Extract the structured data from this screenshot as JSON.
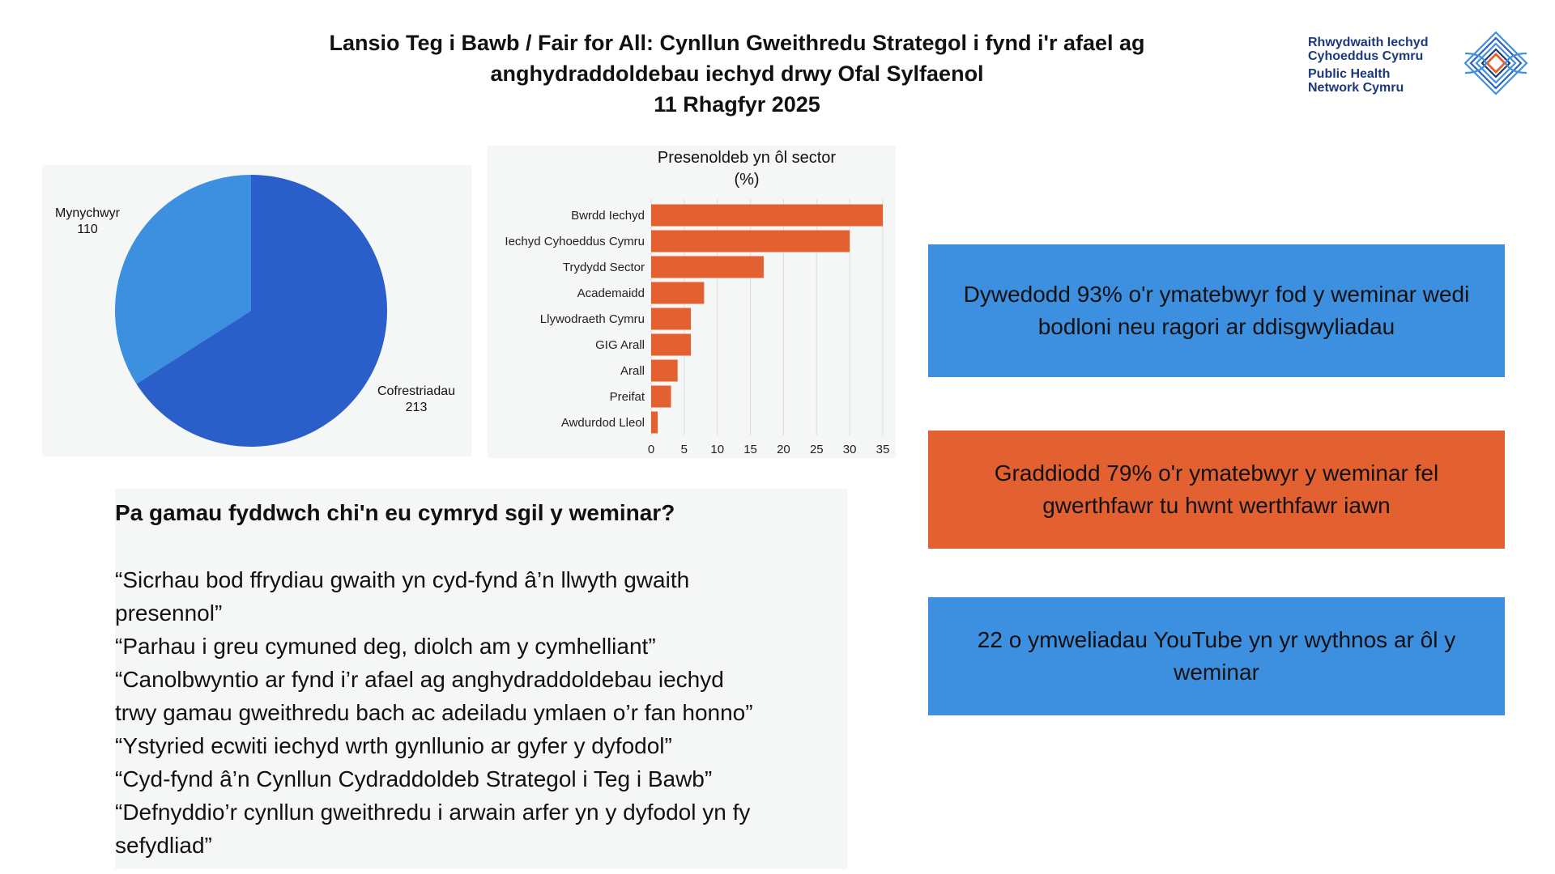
{
  "header": {
    "title_line1": "Lansio Teg i Bawb / Fair for All: Cynllun Gweithredu Strategol i fynd i'r afael ag",
    "title_line2": "anghydraddoldebau iechyd drwy Ofal Sylfaenol",
    "date": "11 Rhagfyr 2025"
  },
  "logo": {
    "line1": "Rhwydwaith Iechyd",
    "line2": "Cyhoeddus Cymru",
    "line3": "Public Health",
    "line4": "Network Cymru",
    "icon": "network-diamond-icon"
  },
  "chart_data": [
    {
      "type": "pie",
      "categories": [
        "Mynychwyr",
        "Cofrestriadau"
      ],
      "values": [
        110,
        213
      ],
      "labels": [
        {
          "name": "Mynychwyr",
          "value": "110"
        },
        {
          "name": "Cofrestriadau",
          "value": "213"
        }
      ],
      "colors": [
        "#3d8fe0",
        "#2a5fc9"
      ]
    },
    {
      "type": "bar",
      "orientation": "horizontal",
      "title": "Presenoldeb yn ôl sector",
      "subtitle": "(%)",
      "categories": [
        "Bwrdd Iechyd",
        "Iechyd Cyhoeddus Cymru",
        "Trydydd Sector",
        "Academaidd",
        "Llywodraeth Cymru",
        "GIG Arall",
        "Arall",
        "Preifat",
        "Awdurdod Lleol"
      ],
      "values": [
        35,
        30,
        17,
        8,
        6,
        6,
        4,
        3,
        1
      ],
      "xlim": [
        0,
        35
      ],
      "xticks": [
        "0",
        "5",
        "10",
        "15",
        "20",
        "25",
        "30",
        "35"
      ],
      "grid": "vertical",
      "color": "#e36130"
    }
  ],
  "feedback": {
    "heading": "Pa gamau fyddwch chi'n eu cymryd sgil y weminar?",
    "quotes": [
      "“Sicrhau bod ffrydiau gwaith yn cyd-fynd â’n llwyth gwaith",
      "presennol”",
      "“Parhau i greu cymuned deg, diolch am y cymhelliant”",
      "“Canolbwyntio ar fynd i’r afael ag anghydraddoldebau iechyd",
      "trwy gamau gweithredu bach ac adeiladu ymlaen o’r fan honno”",
      "“Ystyried ecwiti iechyd wrth gynllunio ar gyfer y dyfodol”",
      "“Cyd-fynd â’n Cynllun Cydraddoldeb Strategol i Teg i Bawb”",
      "“Defnyddio’r cynllun gweithredu i arwain arfer yn y dyfodol yn fy",
      "sefydliad”"
    ]
  },
  "stats": [
    {
      "text": "Dywedodd 93% o'r ymatebwyr fod y weminar wedi bodloni neu ragori ar ddisgwyliadau",
      "color": "#3d8fe0"
    },
    {
      "text": "Graddiodd 79% o'r ymatebwyr y weminar fel gwerthfawr tu hwnt werthfawr iawn",
      "color": "#e36130"
    },
    {
      "text": "22 o ymweliadau YouTube yn yr wythnos ar ôl y weminar",
      "color": "#3d8fe0"
    }
  ]
}
